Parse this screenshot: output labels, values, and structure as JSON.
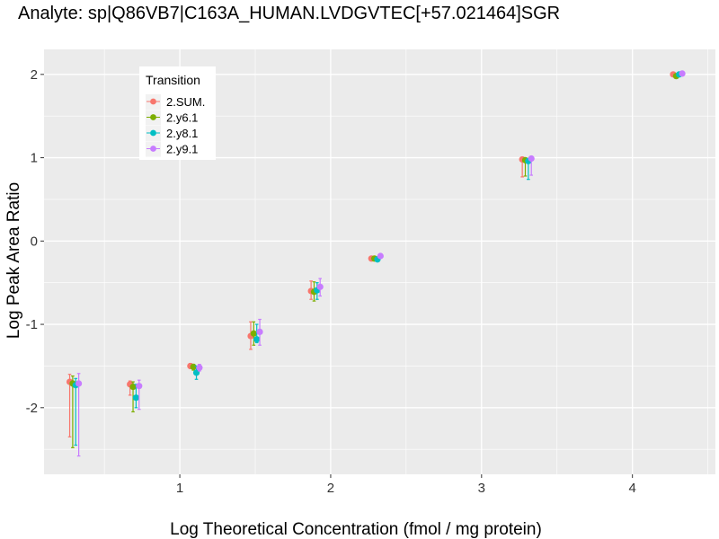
{
  "chart_data": {
    "type": "scatter",
    "title": "Analyte: sp|Q86VB7|C163A_HUMAN.LVDGVTEC[+57.021464]SGR",
    "xlabel": "Log Theoretical Concentration (fmol / mg protein)",
    "ylabel": "Log Peak Area Ratio",
    "xlim": [
      0.1,
      4.55
    ],
    "ylim": [
      -2.8,
      2.3
    ],
    "x_ticks": [
      1,
      2,
      3,
      4
    ],
    "x_tick_labels": [
      "1",
      "2",
      "3",
      "4"
    ],
    "y_ticks": [
      -2,
      -1,
      0,
      1,
      2
    ],
    "y_tick_labels": [
      "-2",
      "-1",
      "0",
      "1",
      "2"
    ],
    "grid": true,
    "legend": {
      "title": "Transition",
      "position": "top-left"
    },
    "x_levels": [
      0.3,
      0.7,
      1.1,
      1.5,
      1.9,
      2.3,
      3.3,
      4.3
    ],
    "series": [
      {
        "name": "2.SUM.",
        "color": "#F8766D",
        "x_offset": -0.03,
        "y": [
          -1.69,
          -1.72,
          -1.5,
          -1.14,
          -0.6,
          -0.21,
          0.98,
          2.0
        ],
        "err_low": [
          -2.35,
          -1.85,
          -1.53,
          -1.3,
          -0.7,
          -0.21,
          0.77,
          2.0
        ],
        "err_high": [
          -1.6,
          -1.68,
          -1.47,
          -0.97,
          -0.48,
          -0.21,
          1.0,
          2.0
        ]
      },
      {
        "name": "2.y6.1",
        "color": "#7CAE00",
        "x_offset": -0.01,
        "y": [
          -1.71,
          -1.75,
          -1.51,
          -1.11,
          -0.61,
          -0.21,
          0.97,
          1.98
        ],
        "err_low": [
          -2.48,
          -2.05,
          -1.55,
          -1.25,
          -0.72,
          -0.21,
          0.78,
          1.98
        ],
        "err_high": [
          -1.62,
          -1.69,
          -1.48,
          -0.97,
          -0.49,
          -0.21,
          0.99,
          1.98
        ]
      },
      {
        "name": "2.y8.1",
        "color": "#00BFC4",
        "x_offset": 0.01,
        "y": [
          -1.73,
          -1.88,
          -1.58,
          -1.18,
          -0.59,
          -0.22,
          0.96,
          2.0
        ],
        "err_low": [
          -2.45,
          -2.0,
          -1.66,
          -1.22,
          -0.7,
          -0.22,
          0.74,
          2.0
        ],
        "err_high": [
          -1.65,
          -1.72,
          -1.5,
          -1.0,
          -0.5,
          -0.22,
          0.99,
          2.0
        ]
      },
      {
        "name": "2.y9.1",
        "color": "#C77CFF",
        "x_offset": 0.03,
        "y": [
          -1.71,
          -1.74,
          -1.52,
          -1.09,
          -0.55,
          -0.18,
          0.99,
          2.01
        ],
        "err_low": [
          -2.58,
          -2.02,
          -1.56,
          -1.25,
          -0.66,
          -0.18,
          0.79,
          2.01
        ],
        "err_high": [
          -1.59,
          -1.67,
          -1.48,
          -0.94,
          -0.45,
          -0.18,
          1.01,
          2.01
        ]
      }
    ]
  }
}
